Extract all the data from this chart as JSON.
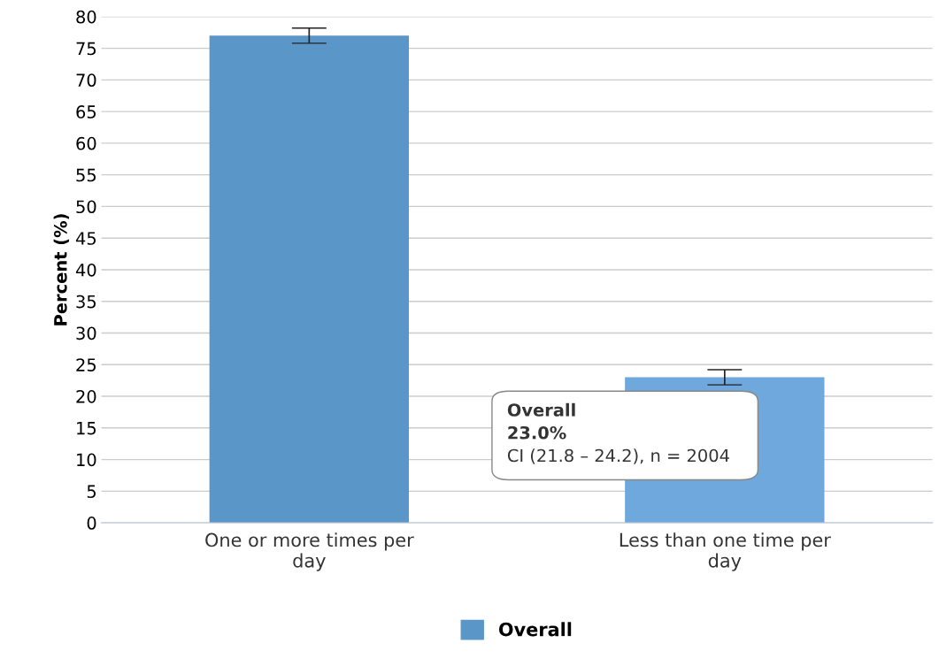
{
  "chart_data": {
    "type": "bar",
    "ylabel": "Percent (%)",
    "categories": [
      "One or more times per day",
      "Less than one time per day"
    ],
    "series": [
      {
        "name": "Overall",
        "color": "#5b96c8",
        "colors": [
          "#5b96c8",
          "#6fa8dc"
        ],
        "values": [
          77.0,
          23.0
        ],
        "errors": [
          [
            75.8,
            78.2
          ],
          [
            21.8,
            24.2
          ]
        ]
      }
    ],
    "ylim": [
      0,
      80
    ],
    "yticks": [
      0,
      5,
      10,
      15,
      20,
      25,
      30,
      35,
      40,
      45,
      50,
      55,
      60,
      65,
      70,
      75,
      80
    ],
    "grid": "y",
    "legend": "bottom",
    "annotations": [
      "Overall",
      "23.0%",
      "CI (21.8 – 24.2), n = 2004"
    ]
  }
}
